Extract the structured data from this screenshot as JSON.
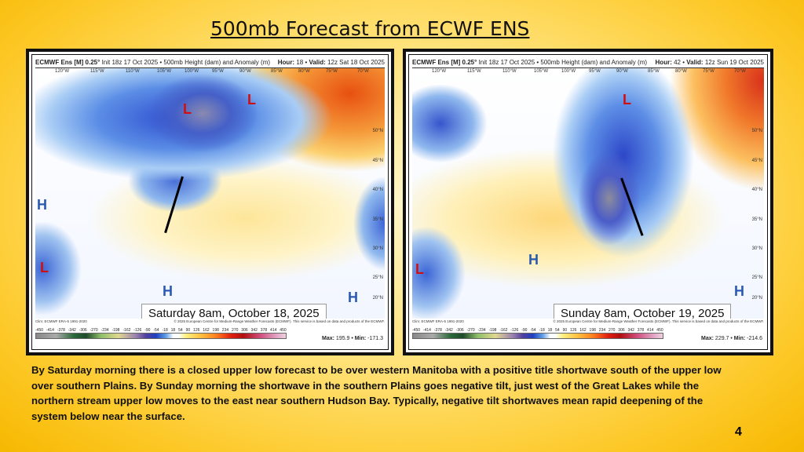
{
  "slide": {
    "title": "500mb Forecast from ECWF ENS",
    "page_number": "4",
    "body": "By Saturday morning there is a closed upper low forecast to be over western Manitoba with a positive title shortwave south of the upper low over southern Plains.   By Sunday morning the shortwave in the southern Plains goes negative tilt, just west of the Great Lakes while the northern stream upper low moves to the east near southern Hudson Bay.  Typically, negative tilt shortwaves mean rapid deepening of the system below near the surface."
  },
  "maps": [
    {
      "model": "ECMWF Ens [M] 0.25°",
      "init": "Init 18z 17 Oct 2025 • 500mb Height (dam) and Anomaly (m)",
      "hour_label": "Hour:",
      "hour": "18",
      "valid_label": "Valid:",
      "valid": "12z Sat 18 Oct 2025",
      "caption": "Saturday 8am, October 18, 2025",
      "max": "195.9",
      "min": "-171.3"
    },
    {
      "model": "ECMWF Ens [M] 0.25°",
      "init": "Init 18z 17 Oct 2025 • 500mb Height (dam) and Anomaly (m)",
      "hour_label": "Hour:",
      "hour": "42",
      "valid_label": "Valid:",
      "valid": "12z Sun 19 Oct 2025",
      "caption": "Sunday 8am, October 19, 2025",
      "max": "229.7",
      "min": "-214.6"
    }
  ],
  "common": {
    "clim": "Clim: ECMWF ERA-5 1991-2020",
    "copyright": "© 2025 European Centre for Medium-Range Weather Forecasts (ECMWF). This service is based on data and products of the ECMWF.",
    "max_label": "Max:",
    "min_label": "Min:",
    "lons": [
      "120°W",
      "115°W",
      "110°W",
      "105°W",
      "100°W",
      "95°W",
      "90°W",
      "85°W",
      "80°W",
      "75°W",
      "70°W"
    ],
    "lats": [
      "50°N",
      "45°N",
      "40°N",
      "35°N",
      "30°N",
      "25°N",
      "20°N"
    ],
    "colorbar": [
      "-450",
      "-414",
      "-378",
      "-342",
      "-306",
      "-270",
      "-234",
      "-198",
      "-162",
      "-126",
      "-90",
      "-54",
      "-18",
      "18",
      "54",
      "90",
      "126",
      "162",
      "198",
      "234",
      "270",
      "306",
      "342",
      "378",
      "414",
      "450"
    ],
    "L": "L",
    "H": "H"
  }
}
